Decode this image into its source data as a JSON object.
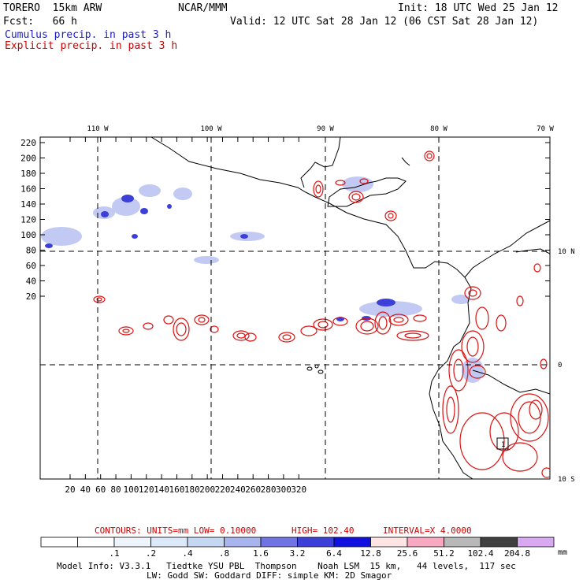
{
  "header": {
    "model_name": "TORERO  15km ARW",
    "org": "NCAR/MMM",
    "init": "Init: 18 UTC Wed 25 Jan 12",
    "fcst": "Fcst:   66 h",
    "valid": "Valid: 12 UTC Sat 28 Jan 12 (06 CST Sat 28 Jan 12)",
    "legend_cumulus": "Cumulus precip. in past 3 h",
    "legend_explicit": "Explicit precip. in past 3 h"
  },
  "map": {
    "top_labels": [
      "110 W",
      "100 W",
      "90 W",
      "80 W",
      "70 W"
    ],
    "right_labels": [
      "10 N",
      "0",
      "10 S"
    ],
    "y_ticks": [
      "220",
      "200",
      "180",
      "160",
      "140",
      "120",
      "100",
      "80",
      "60",
      "40",
      "20"
    ],
    "x_ticks": [
      "20",
      "40",
      "60",
      "80",
      "100",
      "120",
      "140",
      "160",
      "180",
      "200",
      "220",
      "240",
      "260",
      "280",
      "300",
      "320"
    ],
    "box_label": "1"
  },
  "contour_info": {
    "contours": "CONTOURS:  UNITS=mm  LOW= 0.10000",
    "high": "HIGH=  102.40",
    "interval": "INTERVAL=X  4.0000"
  },
  "colorbar": {
    "labels": [
      ".1",
      ".2",
      ".4",
      ".8",
      "1.6",
      "3.2",
      "6.4",
      "12.8",
      "25.6",
      "51.2",
      "102.4",
      "204.8"
    ],
    "unit": "mm",
    "colors": [
      "#ffffff",
      "#ffffff",
      "#eef4fb",
      "#dce9f8",
      "#c4d8f4",
      "#a8b4ee",
      "#6f74e2",
      "#3c40d8",
      "#1010e0",
      "#ffe4e4",
      "#f8a8c0",
      "#b8b8b8",
      "#404040",
      "#d8a8f0"
    ]
  },
  "footer": {
    "line1": "Model Info: V3.3.1   Tiedtke YSU PBL  Thompson    Noah LSM  15 km,   44 levels,  117 sec",
    "line2": "LW: Godd SW: Goddard DIFF: simple KM: 2D Smagor"
  }
}
